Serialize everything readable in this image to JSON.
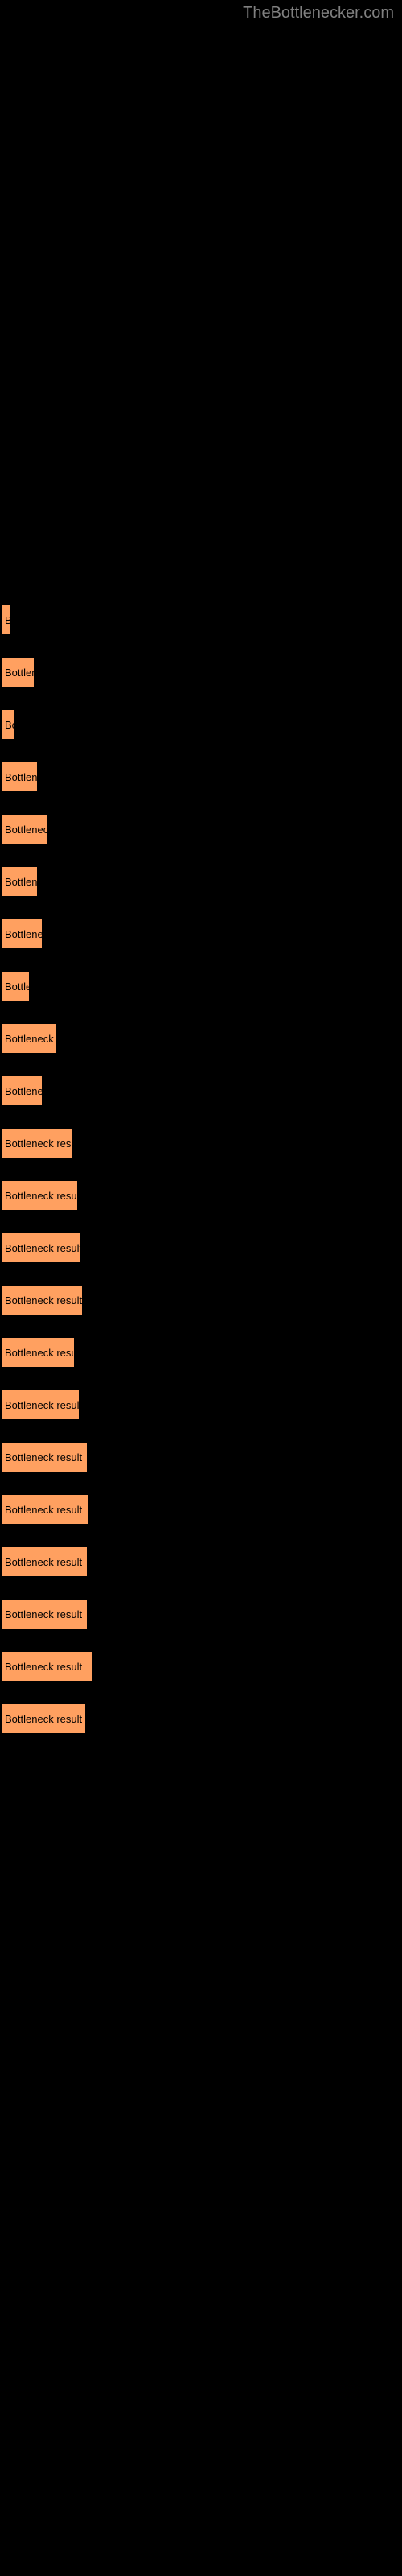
{
  "watermark": "TheBottlenecker.com",
  "chart": {
    "type": "bar",
    "background_color": "#000000",
    "bar_color": "#ffa060",
    "bar_border_color": "#000000",
    "text_color": "#000000",
    "label_fontsize": 13,
    "bars": [
      {
        "label": "B",
        "width": 14
      },
      {
        "label": "Bottlen",
        "width": 44
      },
      {
        "label": "Bo",
        "width": 20
      },
      {
        "label": "Bottlene",
        "width": 48
      },
      {
        "label": "Bottleneck",
        "width": 60
      },
      {
        "label": "Bottlene",
        "width": 48
      },
      {
        "label": "Bottlenec",
        "width": 54
      },
      {
        "label": "Bottle",
        "width": 38
      },
      {
        "label": "Bottleneck r",
        "width": 72
      },
      {
        "label": "Bottlenec",
        "width": 54
      },
      {
        "label": "Bottleneck resul",
        "width": 92
      },
      {
        "label": "Bottleneck result",
        "width": 98
      },
      {
        "label": "Bottleneck result",
        "width": 102
      },
      {
        "label": "Bottleneck result",
        "width": 104
      },
      {
        "label": "Bottleneck resul",
        "width": 94
      },
      {
        "label": "Bottleneck result",
        "width": 100
      },
      {
        "label": "Bottleneck result",
        "width": 110
      },
      {
        "label": "Bottleneck result",
        "width": 112
      },
      {
        "label": "Bottleneck result",
        "width": 110
      },
      {
        "label": "Bottleneck result",
        "width": 110
      },
      {
        "label": "Bottleneck result",
        "width": 116
      },
      {
        "label": "Bottleneck result",
        "width": 108
      }
    ]
  }
}
